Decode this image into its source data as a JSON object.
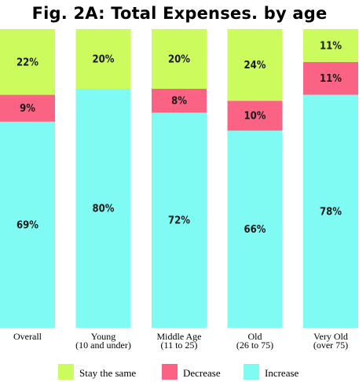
{
  "chart_data": {
    "type": "bar",
    "stacked": true,
    "percent": true,
    "title": "Fig. 2A: Total Expenses. by age",
    "categories": [
      [
        "Overall"
      ],
      [
        "Young",
        "(10 and under)"
      ],
      [
        "Middle Age",
        "(11 to 25)"
      ],
      [
        "Old",
        "(26 to 75)"
      ],
      [
        "Very Old",
        "(over 75)"
      ]
    ],
    "series": [
      {
        "name": "Increase",
        "color": "#7ffbf3",
        "values": [
          69,
          80,
          72,
          66,
          78
        ]
      },
      {
        "name": "Decrease",
        "color": "#fb6384",
        "values": [
          9,
          0,
          8,
          10,
          11
        ]
      },
      {
        "name": "Stay the same",
        "color": "#ccfb5e",
        "values": [
          22,
          20,
          20,
          24,
          11
        ]
      }
    ],
    "legend": {
      "placement": "bottom",
      "order": [
        "Stay the same",
        "Decrease",
        "Increase"
      ]
    },
    "ylim": [
      0,
      100
    ],
    "grid": false
  }
}
